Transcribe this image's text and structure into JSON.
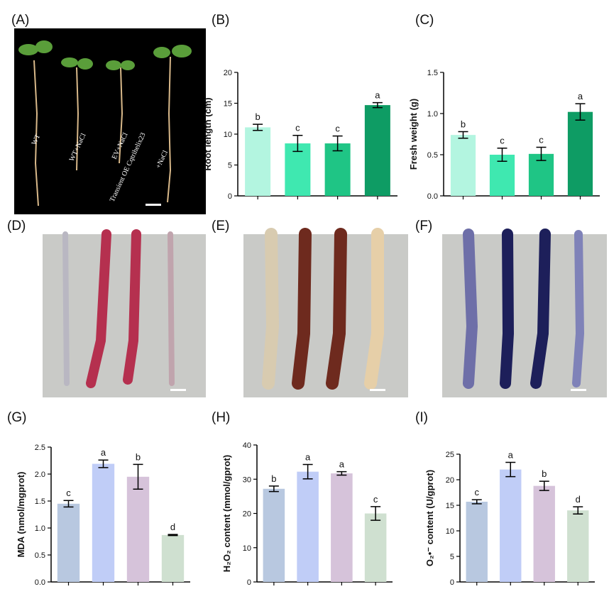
{
  "panels": {
    "A": {
      "label": "(A)",
      "texts": [
        "WT",
        "WT+NaCl",
        "EV+NaCl",
        "Transient OE Cqtrihelix23",
        "+NaCl"
      ]
    },
    "D": {
      "label": "(D)"
    },
    "E": {
      "label": "(E)"
    },
    "F": {
      "label": "(F)"
    }
  },
  "chart_data": [
    {
      "type": "bar",
      "panel": "(B)",
      "y_label": "Root length (cm)",
      "categories": [
        null,
        null,
        null,
        null
      ],
      "values": [
        11.1,
        8.5,
        8.5,
        14.7
      ],
      "errors": [
        0.5,
        1.3,
        1.2,
        0.4
      ],
      "annotations": [
        "b",
        "c",
        "c",
        "a"
      ],
      "colors": [
        "#b3f5e0",
        "#3fe8b0",
        "#1fc585",
        "#0e9c64"
      ],
      "ylim": [
        0,
        20
      ],
      "yticks": [
        0,
        5,
        10,
        15,
        20
      ]
    },
    {
      "type": "bar",
      "panel": "(C)",
      "y_label": "Fresh weight (g)",
      "categories": [
        null,
        null,
        null,
        null
      ],
      "values": [
        0.74,
        0.5,
        0.51,
        1.02
      ],
      "errors": [
        0.04,
        0.08,
        0.08,
        0.1
      ],
      "annotations": [
        "b",
        "c",
        "c",
        "a"
      ],
      "colors": [
        "#b3f5e0",
        "#3fe8b0",
        "#1fc585",
        "#0e9c64"
      ],
      "ylim": [
        0,
        1.5
      ],
      "yticks": [
        {
          "value": 0,
          "label": "0.0"
        },
        {
          "value": 0.5,
          "label": "0.5"
        },
        {
          "value": 1,
          "label": "1.0"
        },
        {
          "value": 1.5,
          "label": "1.5"
        }
      ]
    },
    {
      "type": "bar",
      "panel": "(G)",
      "y_label": "MDA (nmol/mgprot)",
      "categories": [
        null,
        null,
        null,
        null
      ],
      "values": [
        1.45,
        2.19,
        1.95,
        0.87
      ],
      "errors": [
        0.06,
        0.07,
        0.23,
        0.01
      ],
      "annotations": [
        "c",
        "a",
        "b",
        "d"
      ],
      "colors": [
        "#b8c8e0",
        "#c0cdf7",
        "#d6c3da",
        "#cfe0d0"
      ],
      "ylim": [
        0,
        2.5
      ],
      "yticks": [
        {
          "value": 0,
          "label": "0.0"
        },
        {
          "value": 0.5,
          "label": "0.5"
        },
        {
          "value": 1,
          "label": "1.0"
        },
        {
          "value": 1.5,
          "label": "1.5"
        },
        {
          "value": 2,
          "label": "2.0"
        },
        {
          "value": 2.5,
          "label": "2.5"
        }
      ]
    },
    {
      "type": "bar",
      "panel": "(H)",
      "y_label": "H₂O₂ content (mmol/gprot)",
      "categories": [
        null,
        null,
        null,
        null
      ],
      "values": [
        27.2,
        32.2,
        31.7,
        20
      ],
      "errors": [
        0.8,
        2.1,
        0.5,
        2
      ],
      "annotations": [
        "b",
        "a",
        "a",
        "c"
      ],
      "colors": [
        "#b8c8e0",
        "#c0cdf7",
        "#d6c3da",
        "#cfe0d0"
      ],
      "ylim": [
        0,
        40
      ],
      "yticks": [
        0,
        10,
        20,
        30,
        40
      ]
    },
    {
      "type": "bar",
      "panel": "(I)",
      "y_label": "O₂•⁻ content (U/gprot)",
      "categories": [
        null,
        null,
        null,
        null
      ],
      "values": [
        15.7,
        22,
        18.8,
        14
      ],
      "errors": [
        0.4,
        1.4,
        0.9,
        0.7
      ],
      "annotations": [
        "c",
        "a",
        "b",
        "d"
      ],
      "colors": [
        "#b8c8e0",
        "#c0cdf7",
        "#d6c3da",
        "#cfe0d0"
      ],
      "ylim": [
        0,
        25
      ],
      "yticks": [
        0,
        5,
        10,
        15,
        20,
        25
      ]
    }
  ]
}
